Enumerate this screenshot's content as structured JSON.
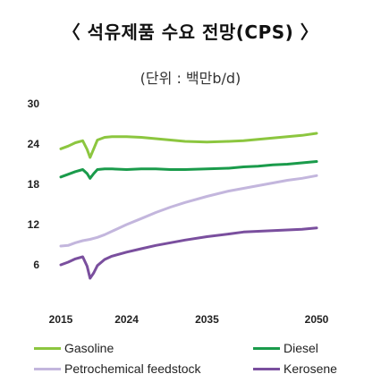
{
  "chart_data": {
    "type": "line",
    "title": "〈 석유제품 수요 전망(CPS) 〉",
    "unit_label": "(단위 : 백만b/d)",
    "x_ticks": [
      "2015",
      "2024",
      "2035",
      "2050"
    ],
    "y_ticks": [
      "30",
      "24",
      "18",
      "12",
      "6"
    ],
    "xlim": [
      2015,
      2050
    ],
    "ylim": [
      0,
      30
    ],
    "grid": false,
    "legend_position": "bottom",
    "series": [
      {
        "name": "Gasoline",
        "color": "#8cc63f",
        "x": [
          2015,
          2016,
          2017,
          2018,
          2018.6,
          2019,
          2019.5,
          2020,
          2021,
          2022,
          2024,
          2026,
          2028,
          2030,
          2032,
          2035,
          2038,
          2040,
          2042,
          2044,
          2046,
          2048,
          2050
        ],
        "y": [
          23.3,
          23.7,
          24.2,
          24.5,
          23.2,
          22.0,
          23.3,
          24.6,
          25.0,
          25.1,
          25.1,
          25.0,
          24.8,
          24.6,
          24.4,
          24.3,
          24.4,
          24.5,
          24.7,
          24.9,
          25.1,
          25.3,
          25.6
        ]
      },
      {
        "name": "Diesel",
        "color": "#1a9b4b",
        "x": [
          2015,
          2016,
          2017,
          2018,
          2018.6,
          2019,
          2019.5,
          2020,
          2021,
          2022,
          2024,
          2026,
          2028,
          2030,
          2032,
          2035,
          2038,
          2040,
          2042,
          2044,
          2046,
          2048,
          2050
        ],
        "y": [
          19.1,
          19.5,
          19.9,
          20.2,
          19.6,
          18.9,
          19.6,
          20.2,
          20.3,
          20.3,
          20.2,
          20.3,
          20.3,
          20.2,
          20.2,
          20.3,
          20.4,
          20.6,
          20.7,
          20.9,
          21.0,
          21.2,
          21.4
        ]
      },
      {
        "name": "Petrochemical feedstock",
        "color": "#c3b6dd",
        "x": [
          2015,
          2016,
          2017,
          2018,
          2019,
          2020,
          2021,
          2022,
          2024,
          2026,
          2028,
          2030,
          2032,
          2035,
          2038,
          2040,
          2042,
          2044,
          2046,
          2048,
          2050
        ],
        "y": [
          8.8,
          8.9,
          9.3,
          9.6,
          9.8,
          10.1,
          10.5,
          11.0,
          12.0,
          12.9,
          13.8,
          14.6,
          15.3,
          16.2,
          17.0,
          17.4,
          17.8,
          18.2,
          18.6,
          18.9,
          19.3
        ]
      },
      {
        "name": "Kerosene",
        "color": "#7a4f9e",
        "x": [
          2015,
          2016,
          2017,
          2018,
          2018.6,
          2019,
          2019.5,
          2020,
          2021,
          2022,
          2024,
          2026,
          2028,
          2030,
          2032,
          2035,
          2038,
          2040,
          2042,
          2044,
          2046,
          2048,
          2050
        ],
        "y": [
          6.0,
          6.4,
          6.9,
          7.2,
          5.8,
          4.0,
          4.8,
          5.9,
          6.8,
          7.3,
          7.9,
          8.4,
          8.9,
          9.3,
          9.7,
          10.2,
          10.6,
          10.9,
          11.0,
          11.1,
          11.2,
          11.3,
          11.5
        ]
      }
    ]
  }
}
